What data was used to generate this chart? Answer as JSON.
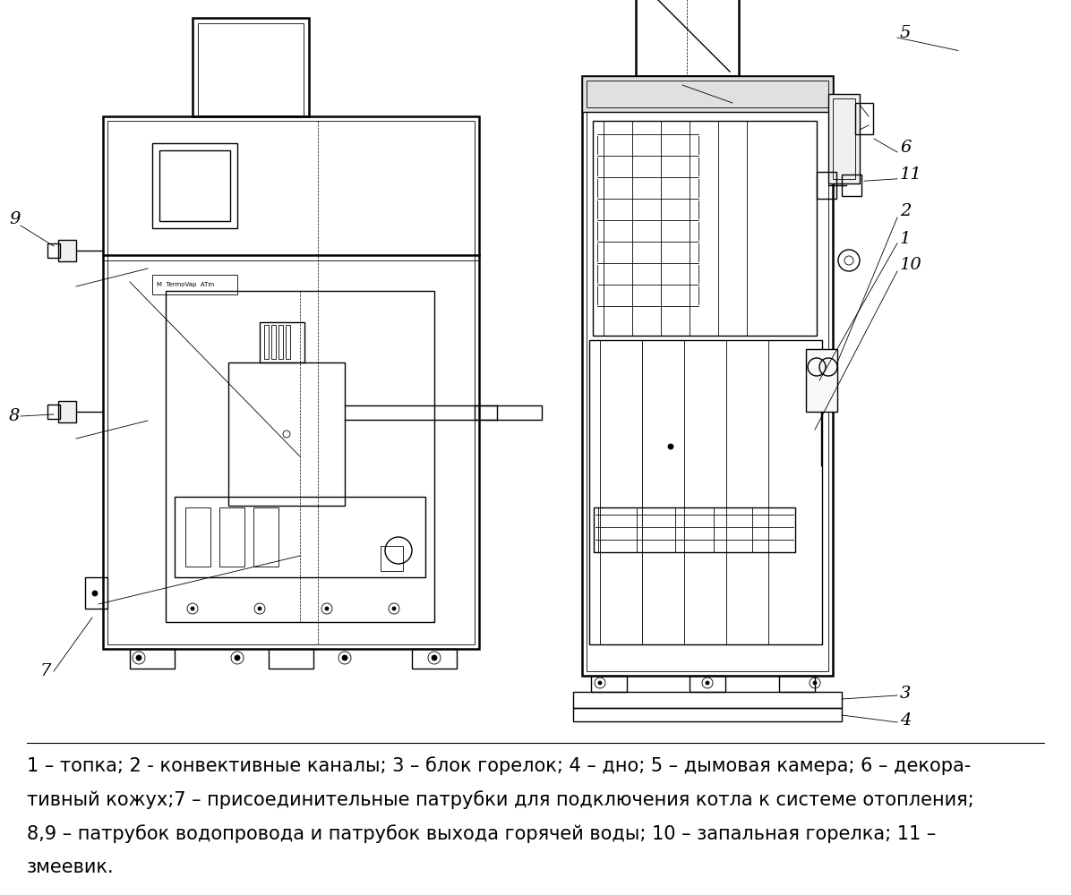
{
  "background_color": "#ffffff",
  "caption_lines": [
    "1 – топка; 2 - конвективные каналы; 3 – блок горелок; 4 – дно; 5 – дымовая камера; 6 – декора-",
    "тивный кожух;7 – присоединительные патрубки для подключения котла к системе отопления;",
    "8,9 – патрубок водопровода и патрубок выхода горячей воды; 10 – запальная горелка; 11 –",
    "змеевик."
  ],
  "caption_fontsize": 15,
  "fig_width": 11.96,
  "fig_height": 10.0,
  "dpi": 100
}
